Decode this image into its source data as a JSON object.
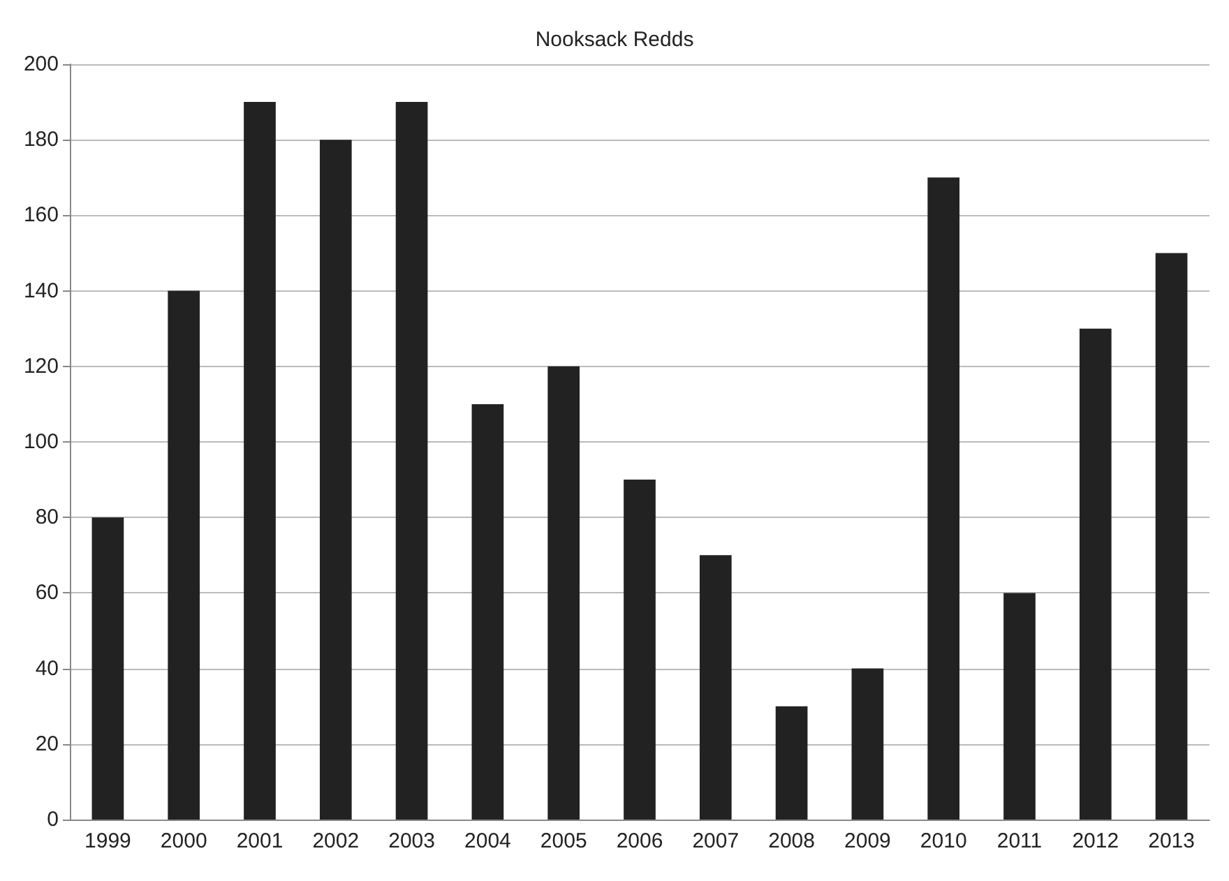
{
  "chart_data": {
    "type": "bar",
    "title": "Nooksack Redds",
    "categories": [
      "1999",
      "2000",
      "2001",
      "2002",
      "2003",
      "2004",
      "2005",
      "2006",
      "2007",
      "2008",
      "2009",
      "2010",
      "2011",
      "2012",
      "2013"
    ],
    "values": [
      80,
      140,
      190,
      180,
      190,
      110,
      120,
      90,
      70,
      30,
      40,
      170,
      60,
      130,
      150
    ],
    "color": "#222222",
    "ylim": [
      0,
      200
    ],
    "yticks": [
      0,
      20,
      40,
      60,
      80,
      100,
      120,
      140,
      160,
      180,
      200
    ],
    "grid": "y"
  }
}
